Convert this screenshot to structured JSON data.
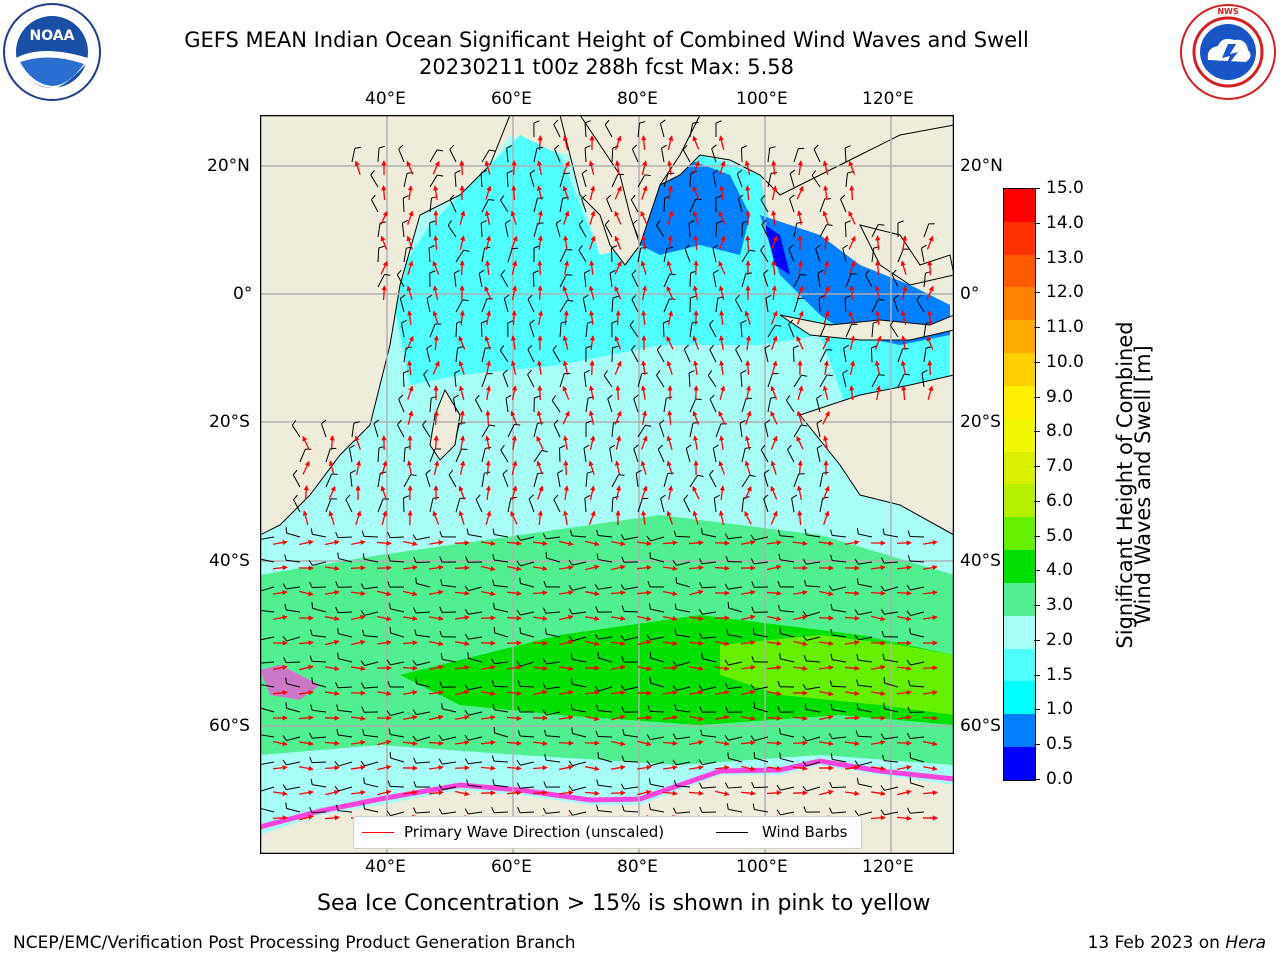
{
  "header": {
    "title_line1": "GEFS MEAN Indian Ocean Significant Height of Combined Wind Waves and Swell",
    "title_line2": "20230211 t00z 288h fcst   Max: 5.58"
  },
  "logos": {
    "left": {
      "name": "noaa-logo",
      "text": "NOAA",
      "ring_text": "NATIONAL OCEANIC AND ATMOSPHERIC ADMINISTRATION · U.S. DEPARTMENT OF COMMERCE"
    },
    "right": {
      "name": "nws-logo",
      "ring_text": "NATIONAL WEATHER SERVICE"
    }
  },
  "map": {
    "lon_ticks_top": [
      "40°E",
      "60°E",
      "80°E",
      "100°E",
      "120°E"
    ],
    "lon_ticks_bottom": [
      "40°E",
      "60°E",
      "80°E",
      "100°E",
      "120°E"
    ],
    "lat_ticks_left": [
      "20°N",
      "0°",
      "20°S",
      "40°S",
      "60°S"
    ],
    "lat_ticks_right": [
      "20°N",
      "0°",
      "20°S",
      "40°S",
      "60°S"
    ],
    "colors": {
      "land": "#efecdc",
      "ocean_low": "#0046ff",
      "arrows": "#ff0000",
      "barbs": "#000000",
      "ice": "#ff44dd"
    }
  },
  "legend": {
    "primary_wave": "Primary Wave Direction (unscaled)",
    "wind_barbs": "Wind Barbs"
  },
  "colorbar": {
    "label_line1": "Significant Height of Combined",
    "label_line2": "Wind Waves and Swell [m]",
    "ticks": [
      "15.0",
      "14.0",
      "13.0",
      "12.0",
      "11.0",
      "10.0",
      "9.0",
      "8.0",
      "7.0",
      "6.0",
      "5.0",
      "4.0",
      "3.0",
      "2.0",
      "1.5",
      "1.0",
      "0.5",
      "0.0"
    ],
    "bands_top_to_bottom": [
      "#ff0000",
      "#ff3000",
      "#ff5a00",
      "#ff8200",
      "#ffa800",
      "#ffd000",
      "#fff000",
      "#f0f800",
      "#d8f000",
      "#b4f000",
      "#64f000",
      "#00e000",
      "#50f090",
      "#a8fff8",
      "#50ffff",
      "#00ffff",
      "#0080ff",
      "#0000ff"
    ]
  },
  "caption": "Sea Ice Concentration > 15% is shown in pink to yellow",
  "footer": {
    "left": "NCEP/EMC/Verification Post Processing Product Generation Branch",
    "right_prefix": "13 Feb 2023 on ",
    "right_machine": "Hera"
  }
}
